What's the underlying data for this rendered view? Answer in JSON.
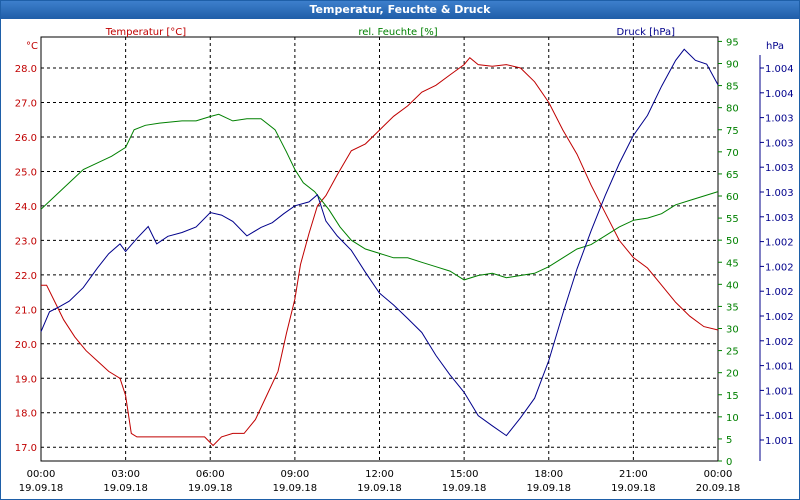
{
  "window": {
    "title": "Temperatur, Feuchte & Druck"
  },
  "colors": {
    "temperature": "#c00000",
    "humidity": "#008000",
    "pressure": "#00008b",
    "grid": "#000000"
  },
  "chart_data": {
    "type": "line",
    "title": "Temperatur, Feuchte & Druck",
    "grid": true,
    "x_ticks": [
      {
        "time": "00:00",
        "date": "19.09.18"
      },
      {
        "time": "03:00",
        "date": "19.09.18"
      },
      {
        "time": "06:00",
        "date": "19.09.18"
      },
      {
        "time": "09:00",
        "date": "19.09.18"
      },
      {
        "time": "12:00",
        "date": "19.09.18"
      },
      {
        "time": "15:00",
        "date": "19.09.18"
      },
      {
        "time": "18:00",
        "date": "19.09.18"
      },
      {
        "time": "21:00",
        "date": "19.09.18"
      },
      {
        "time": "00:00",
        "date": "20.09.18"
      }
    ],
    "x_range_hours": [
      0,
      24
    ],
    "axes": {
      "temperature": {
        "label": "Temperatur [°C]",
        "unit": "°C",
        "range": [
          16.6,
          28.9
        ],
        "ticks": [
          "17.0",
          "18.0",
          "19.0",
          "20.0",
          "21.0",
          "22.0",
          "23.0",
          "24.0",
          "25.0",
          "26.0",
          "27.0",
          "28.0"
        ],
        "tick_values": [
          17,
          18,
          19,
          20,
          21,
          22,
          23,
          24,
          25,
          26,
          27,
          28
        ]
      },
      "humidity": {
        "label": "rel. Feuchte [%]",
        "unit": "%",
        "range": [
          0,
          96
        ],
        "ticks": [
          "0",
          "5",
          "10",
          "15",
          "20",
          "25",
          "30",
          "35",
          "40",
          "45",
          "50",
          "55",
          "60",
          "65",
          "70",
          "75",
          "80",
          "85",
          "90",
          "95"
        ],
        "tick_values": [
          0,
          5,
          10,
          15,
          20,
          25,
          30,
          35,
          40,
          45,
          50,
          55,
          60,
          65,
          70,
          75,
          80,
          85,
          90,
          95
        ]
      },
      "pressure": {
        "label": "Druck [hPa]",
        "unit": "hPa",
        "ticks": [
          "1.001",
          "1.001",
          "1.001",
          "1.001",
          "1.002",
          "1.002",
          "1.002",
          "1.002",
          "1.002",
          "1.003",
          "1.003",
          "1.003",
          "1.003",
          "1.003",
          "1.004",
          "1.004"
        ]
      }
    },
    "series": [
      {
        "name": "Temperatur [°C]",
        "axis": "temperature",
        "color": "#c00000",
        "points": [
          [
            0,
            21.7
          ],
          [
            0.2,
            21.7
          ],
          [
            0.5,
            21.2
          ],
          [
            0.8,
            20.7
          ],
          [
            1.2,
            20.2
          ],
          [
            1.6,
            19.8
          ],
          [
            2.0,
            19.5
          ],
          [
            2.4,
            19.2
          ],
          [
            2.8,
            19.0
          ],
          [
            3.0,
            18.5
          ],
          [
            3.2,
            17.4
          ],
          [
            3.4,
            17.3
          ],
          [
            3.8,
            17.3
          ],
          [
            4.2,
            17.3
          ],
          [
            4.6,
            17.3
          ],
          [
            5.0,
            17.3
          ],
          [
            5.4,
            17.3
          ],
          [
            5.8,
            17.3
          ],
          [
            6.1,
            17.05
          ],
          [
            6.4,
            17.3
          ],
          [
            6.8,
            17.4
          ],
          [
            7.2,
            17.4
          ],
          [
            7.6,
            17.8
          ],
          [
            8.0,
            18.5
          ],
          [
            8.4,
            19.2
          ],
          [
            8.7,
            20.3
          ],
          [
            9.0,
            21.3
          ],
          [
            9.2,
            22.3
          ],
          [
            9.5,
            23.2
          ],
          [
            9.8,
            24.0
          ],
          [
            10.1,
            24.3
          ],
          [
            10.5,
            24.9
          ],
          [
            11.0,
            25.6
          ],
          [
            11.5,
            25.8
          ],
          [
            12.0,
            26.2
          ],
          [
            12.5,
            26.6
          ],
          [
            13.0,
            26.9
          ],
          [
            13.5,
            27.3
          ],
          [
            14.0,
            27.5
          ],
          [
            14.5,
            27.8
          ],
          [
            15.0,
            28.1
          ],
          [
            15.2,
            28.3
          ],
          [
            15.5,
            28.1
          ],
          [
            16.0,
            28.05
          ],
          [
            16.5,
            28.1
          ],
          [
            17.0,
            28.0
          ],
          [
            17.5,
            27.6
          ],
          [
            18.0,
            27.0
          ],
          [
            18.5,
            26.2
          ],
          [
            19.0,
            25.5
          ],
          [
            19.5,
            24.6
          ],
          [
            20.0,
            23.8
          ],
          [
            20.5,
            23.0
          ],
          [
            21.0,
            22.5
          ],
          [
            21.5,
            22.2
          ],
          [
            22.0,
            21.7
          ],
          [
            22.5,
            21.2
          ],
          [
            23.0,
            20.8
          ],
          [
            23.5,
            20.5
          ],
          [
            24.0,
            20.4
          ]
        ]
      },
      {
        "name": "rel. Feuchte [%]",
        "axis": "humidity",
        "color": "#008000",
        "points": [
          [
            0,
            57
          ],
          [
            0.5,
            60
          ],
          [
            1.0,
            63
          ],
          [
            1.5,
            66
          ],
          [
            2.0,
            67.5
          ],
          [
            2.5,
            69
          ],
          [
            3.0,
            71
          ],
          [
            3.3,
            75
          ],
          [
            3.7,
            76
          ],
          [
            4.2,
            76.5
          ],
          [
            5.0,
            77
          ],
          [
            5.5,
            77
          ],
          [
            6.0,
            78
          ],
          [
            6.3,
            78.5
          ],
          [
            6.8,
            77
          ],
          [
            7.3,
            77.5
          ],
          [
            7.8,
            77.5
          ],
          [
            8.3,
            75
          ],
          [
            8.7,
            70
          ],
          [
            9.0,
            66
          ],
          [
            9.3,
            63
          ],
          [
            9.7,
            61
          ],
          [
            10.2,
            57
          ],
          [
            10.6,
            53
          ],
          [
            11.0,
            50
          ],
          [
            11.5,
            48
          ],
          [
            12.0,
            47
          ],
          [
            12.5,
            46
          ],
          [
            13.0,
            46
          ],
          [
            13.5,
            45
          ],
          [
            14.0,
            44
          ],
          [
            14.5,
            43
          ],
          [
            15.0,
            41
          ],
          [
            15.5,
            42
          ],
          [
            16.0,
            42.5
          ],
          [
            16.5,
            41.5
          ],
          [
            17.0,
            42
          ],
          [
            17.5,
            42.5
          ],
          [
            18.0,
            44
          ],
          [
            18.5,
            46
          ],
          [
            19.0,
            48
          ],
          [
            19.5,
            49
          ],
          [
            20.0,
            51
          ],
          [
            20.5,
            53
          ],
          [
            21.0,
            54.5
          ],
          [
            21.5,
            55
          ],
          [
            22.0,
            56
          ],
          [
            22.5,
            58
          ],
          [
            23.0,
            59
          ],
          [
            23.5,
            60
          ],
          [
            24.0,
            61
          ]
        ]
      },
      {
        "name": "Druck [hPa]",
        "axis": "pressure",
        "color": "#00008b",
        "unit_note": "plotted on right hPa axis (0–1 of axis height)",
        "points": [
          [
            0,
            0.305
          ],
          [
            0.3,
            0.352
          ],
          [
            0.6,
            0.362
          ],
          [
            1.0,
            0.377
          ],
          [
            1.5,
            0.409
          ],
          [
            2.0,
            0.455
          ],
          [
            2.4,
            0.489
          ],
          [
            2.8,
            0.512
          ],
          [
            3.0,
            0.494
          ],
          [
            3.4,
            0.525
          ],
          [
            3.8,
            0.553
          ],
          [
            4.1,
            0.512
          ],
          [
            4.5,
            0.53
          ],
          [
            5.0,
            0.539
          ],
          [
            5.5,
            0.552
          ],
          [
            6.0,
            0.586
          ],
          [
            6.4,
            0.58
          ],
          [
            6.8,
            0.565
          ],
          [
            7.3,
            0.531
          ],
          [
            7.8,
            0.551
          ],
          [
            8.2,
            0.562
          ],
          [
            8.6,
            0.583
          ],
          [
            9.0,
            0.602
          ],
          [
            9.5,
            0.611
          ],
          [
            9.8,
            0.628
          ],
          [
            10.1,
            0.566
          ],
          [
            10.5,
            0.531
          ],
          [
            11.0,
            0.497
          ],
          [
            11.5,
            0.445
          ],
          [
            12.0,
            0.396
          ],
          [
            12.5,
            0.368
          ],
          [
            13.0,
            0.336
          ],
          [
            13.5,
            0.303
          ],
          [
            14.0,
            0.249
          ],
          [
            14.5,
            0.203
          ],
          [
            15.0,
            0.162
          ],
          [
            15.5,
            0.107
          ],
          [
            16.0,
            0.083
          ],
          [
            16.5,
            0.06
          ],
          [
            17.0,
            0.102
          ],
          [
            17.5,
            0.148
          ],
          [
            18.0,
            0.237
          ],
          [
            18.5,
            0.348
          ],
          [
            19.0,
            0.453
          ],
          [
            19.5,
            0.543
          ],
          [
            20.0,
            0.626
          ],
          [
            20.5,
            0.702
          ],
          [
            21.0,
            0.768
          ],
          [
            21.5,
            0.815
          ],
          [
            22.0,
            0.884
          ],
          [
            22.5,
            0.945
          ],
          [
            22.8,
            0.971
          ],
          [
            23.2,
            0.945
          ],
          [
            23.6,
            0.936
          ],
          [
            24.0,
            0.887
          ]
        ]
      }
    ]
  }
}
